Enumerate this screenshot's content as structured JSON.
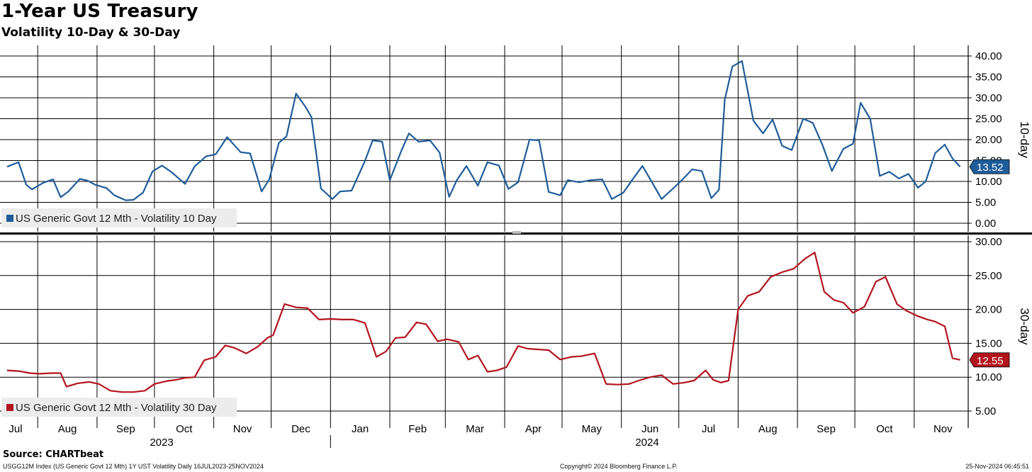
{
  "title": "1-Year US Treasury",
  "subtitle": "Volatility 10-Day & 30-Day",
  "source": "Source: CHARTbeat",
  "footer": {
    "left": "USGG12M Index (US Generic Govt 12 Mth) 1Y UST Volatility  Daily 16JUL2023-25NOV2024",
    "center": "Copyright© 2024 Bloomberg Finance L.P.",
    "right": "25-Nov-2024 06:45:51"
  },
  "colors": {
    "series_10d": "#1f5c99",
    "series_30d": "#b3141e",
    "grid": "#000000"
  },
  "chart_data": [
    {
      "type": "line",
      "panel": "top",
      "axis_label": "10-day",
      "ylim": [
        0,
        40
      ],
      "yticks": [
        "0.00",
        "5.00",
        "10.00",
        "15.00",
        "20.00",
        "25.00",
        "30.00",
        "35.00",
        "40.00"
      ],
      "grid": true,
      "legend_position": "bottom-left",
      "series": [
        {
          "name": "US Generic Govt 12 Mth - Volatility 10 Day",
          "last_value_label": "13.52",
          "x": [
            "2023-07-16",
            "2023-07-22",
            "2023-07-26",
            "2023-07-29",
            "2023-08-04",
            "2023-08-09",
            "2023-08-13",
            "2023-08-17",
            "2023-08-23",
            "2023-08-27",
            "2023-08-31",
            "2023-09-06",
            "2023-09-10",
            "2023-09-16",
            "2023-09-20",
            "2023-09-25",
            "2023-09-30",
            "2023-10-05",
            "2023-10-10",
            "2023-10-17",
            "2023-10-22",
            "2023-10-28",
            "2023-11-02",
            "2023-11-08",
            "2023-11-15",
            "2023-11-20",
            "2023-11-26",
            "2023-11-30",
            "2023-12-05",
            "2023-12-09",
            "2023-12-14",
            "2023-12-19",
            "2023-12-22",
            "2023-12-27",
            "2024-01-02",
            "2024-01-06",
            "2024-01-12",
            "2024-01-19",
            "2024-01-23",
            "2024-01-28",
            "2024-02-01",
            "2024-02-07",
            "2024-02-11",
            "2024-02-16",
            "2024-02-22",
            "2024-02-27",
            "2024-03-03",
            "2024-03-07",
            "2024-03-12",
            "2024-03-18",
            "2024-03-23",
            "2024-03-29",
            "2024-04-03",
            "2024-04-08",
            "2024-04-14",
            "2024-04-19",
            "2024-04-24",
            "2024-04-30",
            "2024-05-04",
            "2024-05-10",
            "2024-05-16",
            "2024-05-22",
            "2024-05-27",
            "2024-06-02",
            "2024-06-07",
            "2024-06-12",
            "2024-06-17",
            "2024-06-22",
            "2024-06-28",
            "2024-07-03",
            "2024-07-08",
            "2024-07-13",
            "2024-07-18",
            "2024-07-22",
            "2024-07-25",
            "2024-07-29",
            "2024-08-03",
            "2024-08-09",
            "2024-08-14",
            "2024-08-19",
            "2024-08-24",
            "2024-08-29",
            "2024-09-04",
            "2024-09-09",
            "2024-09-14",
            "2024-09-19",
            "2024-09-25",
            "2024-09-30",
            "2024-10-04",
            "2024-10-09",
            "2024-10-14",
            "2024-10-19",
            "2024-10-24",
            "2024-10-29",
            "2024-11-03",
            "2024-11-07",
            "2024-11-12",
            "2024-11-17",
            "2024-11-21",
            "2024-11-25"
          ],
          "values": [
            13.5,
            14.6,
            9.2,
            8.1,
            9.7,
            10.5,
            6.2,
            7.6,
            10.6,
            10.2,
            9.2,
            8.4,
            6.7,
            5.5,
            5.6,
            7.3,
            12.4,
            13.8,
            12.2,
            9.4,
            13.6,
            16.0,
            16.5,
            20.6,
            17.0,
            16.7,
            7.6,
            10.5,
            19.2,
            20.8,
            31.0,
            27.8,
            25.4,
            8.3,
            5.8,
            7.6,
            7.8,
            14.9,
            19.8,
            19.5,
            10.3,
            17.3,
            21.5,
            19.5,
            19.8,
            16.9,
            6.3,
            10.3,
            13.7,
            9.0,
            14.6,
            13.8,
            8.2,
            9.8,
            20.0,
            19.8,
            7.5,
            6.7,
            10.3,
            9.8,
            10.3,
            10.5,
            5.8,
            7.3,
            10.6,
            13.7,
            9.8,
            5.8,
            8.3,
            10.5,
            12.9,
            12.5,
            6.0,
            8.0,
            29.5,
            37.5,
            38.8,
            24.5,
            21.5,
            24.8,
            18.5,
            17.5,
            25.0,
            24.0,
            18.8,
            12.5,
            17.8,
            19.0,
            28.8,
            25.0,
            11.3,
            12.3,
            10.7,
            11.8,
            8.5,
            10.0,
            16.8,
            18.8,
            15.5,
            13.52
          ]
        }
      ]
    },
    {
      "type": "line",
      "panel": "bottom",
      "axis_label": "30-day",
      "ylim": [
        5,
        30
      ],
      "yticks": [
        "5.00",
        "10.00",
        "15.00",
        "20.00",
        "25.00",
        "30.00"
      ],
      "grid": true,
      "legend_position": "bottom-left",
      "x_month_labels": [
        "Jul",
        "Aug",
        "Sep",
        "Oct",
        "Nov",
        "Dec",
        "Jan",
        "Feb",
        "Mar",
        "Apr",
        "May",
        "Jun",
        "Jul",
        "Aug",
        "Sep",
        "Oct",
        "Nov"
      ],
      "x_year_labels": [
        "2023",
        "2024"
      ],
      "series": [
        {
          "name": "US Generic Govt 12 Mth - Volatility 30 Day",
          "last_value_label": "12.55",
          "x": [
            "2023-07-16",
            "2023-07-22",
            "2023-07-28",
            "2023-08-02",
            "2023-08-08",
            "2023-08-13",
            "2023-08-16",
            "2023-08-22",
            "2023-08-28",
            "2023-09-02",
            "2023-09-08",
            "2023-09-14",
            "2023-09-20",
            "2023-09-26",
            "2023-10-01",
            "2023-10-07",
            "2023-10-12",
            "2023-10-17",
            "2023-10-22",
            "2023-10-27",
            "2023-11-02",
            "2023-11-07",
            "2023-11-12",
            "2023-11-18",
            "2023-11-24",
            "2023-11-29",
            "2023-12-02",
            "2023-12-08",
            "2023-12-14",
            "2023-12-20",
            "2023-12-26",
            "2024-01-01",
            "2024-01-07",
            "2024-01-13",
            "2024-01-19",
            "2024-01-25",
            "2024-01-30",
            "2024-02-04",
            "2024-02-09",
            "2024-02-15",
            "2024-02-20",
            "2024-02-26",
            "2024-03-02",
            "2024-03-08",
            "2024-03-13",
            "2024-03-18",
            "2024-03-23",
            "2024-03-28",
            "2024-04-02",
            "2024-04-08",
            "2024-04-13",
            "2024-04-18",
            "2024-04-24",
            "2024-04-30",
            "2024-05-06",
            "2024-05-11",
            "2024-05-18",
            "2024-05-24",
            "2024-05-30",
            "2024-06-05",
            "2024-06-10",
            "2024-06-16",
            "2024-06-22",
            "2024-06-28",
            "2024-07-04",
            "2024-07-09",
            "2024-07-15",
            "2024-07-19",
            "2024-07-23",
            "2024-07-27",
            "2024-08-01",
            "2024-08-06",
            "2024-08-12",
            "2024-08-18",
            "2024-08-24",
            "2024-08-30",
            "2024-09-05",
            "2024-09-10",
            "2024-09-15",
            "2024-09-20",
            "2024-09-25",
            "2024-09-30",
            "2024-10-06",
            "2024-10-12",
            "2024-10-17",
            "2024-10-23",
            "2024-10-28",
            "2024-11-03",
            "2024-11-08",
            "2024-11-12",
            "2024-11-17",
            "2024-11-21",
            "2024-11-25"
          ],
          "values": [
            11.0,
            10.9,
            10.6,
            10.5,
            10.6,
            10.6,
            8.6,
            9.1,
            9.3,
            9.0,
            8.0,
            7.8,
            7.8,
            8.0,
            9.0,
            9.4,
            9.6,
            9.9,
            10.0,
            12.5,
            13.0,
            14.7,
            14.3,
            13.5,
            14.5,
            15.8,
            16.2,
            20.8,
            20.3,
            20.2,
            18.5,
            18.6,
            18.5,
            18.5,
            18.0,
            13.0,
            13.8,
            15.8,
            15.9,
            18.1,
            17.8,
            15.3,
            15.6,
            15.2,
            12.6,
            13.2,
            10.8,
            11.0,
            11.5,
            14.6,
            14.2,
            14.1,
            14.0,
            12.6,
            13.0,
            13.1,
            13.5,
            9.0,
            8.9,
            9.0,
            9.5,
            10.0,
            10.3,
            9.0,
            9.2,
            9.5,
            11.0,
            9.6,
            9.2,
            9.5,
            20.0,
            22.0,
            22.6,
            24.8,
            25.5,
            26.0,
            27.5,
            28.4,
            22.6,
            21.4,
            21.0,
            19.5,
            20.4,
            24.1,
            24.8,
            20.8,
            19.8,
            19.0,
            18.5,
            18.2,
            17.5,
            12.8,
            12.55
          ]
        }
      ]
    }
  ]
}
